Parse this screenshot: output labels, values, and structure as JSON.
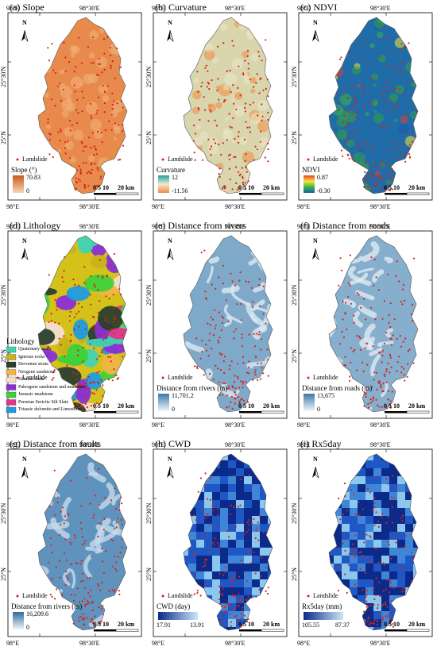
{
  "labels": {
    "north": "N",
    "landslide": "Landslide",
    "scale_ticks": "0 5 10",
    "scale_end": "20 km",
    "lon_left": "98°E",
    "lon_mid": "98°30'E",
    "lat_top": "25°30'N",
    "lat_bot": "25°N"
  },
  "panels": [
    {
      "title": "(a) Slope",
      "legend_title": "Slope (°)",
      "max": "70.83",
      "min": "0",
      "base": "#e88a4c",
      "light": "#f3b27a",
      "colors": [
        "#f6d6b5",
        "#c85a1e"
      ]
    },
    {
      "title": "(b) Curvature",
      "legend_title": "Curvature",
      "max": "12",
      "min": "-11.56",
      "base": "#d9d5ad",
      "light": "#ebe8c9",
      "colors": [
        "#f08b3e",
        "#f0ead0",
        "#1aa3a0"
      ]
    },
    {
      "title": "(c) NDVI",
      "legend_title": "NDVI",
      "max": "0.87",
      "min": "-0.30",
      "base": "#1f6ca8",
      "light": "#35a045",
      "colors": [
        "#1a5fa8",
        "#39b54a",
        "#f7e43a",
        "#e8402b"
      ]
    },
    {
      "title": "(d) Lithology",
      "legend_title": "Lithology",
      "max": "",
      "min": "",
      "base": "#d4c21a",
      "light": "#6ec13c",
      "colors": []
    },
    {
      "title": "(e) Distance from rivers",
      "legend_title": "Distance from rivers (m)",
      "max": "11,701.2",
      "min": "0",
      "base": "#7fa9c9",
      "light": "#dbe8f2",
      "colors": [
        "#f1f6fa",
        "#3c79a8"
      ]
    },
    {
      "title": "(f) Distance from roads",
      "legend_title": "Distance from roads (m)",
      "max": "13,675",
      "min": "0",
      "base": "#86aecd",
      "light": "#dfeaf3",
      "colors": [
        "#f1f6fa",
        "#3c79a8"
      ]
    },
    {
      "title": "(g) Distance from faults",
      "legend_title": "Distance from rivers (m)",
      "max": "16,209.6",
      "min": "0",
      "base": "#5f93bd",
      "light": "#c6dbeb",
      "colors": [
        "#f1f6fa",
        "#2f6a9c"
      ]
    },
    {
      "title": "(h) CWD",
      "legend_title": "CWD (day)",
      "max": "13.91",
      "min": "17.91",
      "base": "#1f57c4",
      "light": "#4f9be0",
      "colors": [
        "#0b2a8a",
        "#cde6f7"
      ]
    },
    {
      "title": "(i) Rx5day",
      "legend_title": "Rx5day (mm)",
      "max": "87.37",
      "min": "105.55",
      "base": "#1b4fc0",
      "light": "#5aa7e6",
      "colors": [
        "#0b2a8a",
        "#cde6f7"
      ]
    }
  ],
  "lithology": [
    {
      "label": "Quaternary strata",
      "color": "#44d3b0"
    },
    {
      "label": "Igneous rocks",
      "color": "#c9b21a"
    },
    {
      "label": "Devonian strata",
      "color": "#2b3f2c"
    },
    {
      "label": "Neogene sandstone",
      "color": "#f2b446"
    },
    {
      "label": "Silurian shale",
      "color": "#f5ded0"
    },
    {
      "label": "Paleogene sandstone and mudstone",
      "color": "#8b2fd6"
    },
    {
      "label": "Jurassic mudstone",
      "color": "#3fd13a"
    },
    {
      "label": "Permian Sericite Silt Slate",
      "color": "#e6338a"
    },
    {
      "label": "Triassic dolomite and Limestone",
      "color": "#1f9be0"
    }
  ]
}
